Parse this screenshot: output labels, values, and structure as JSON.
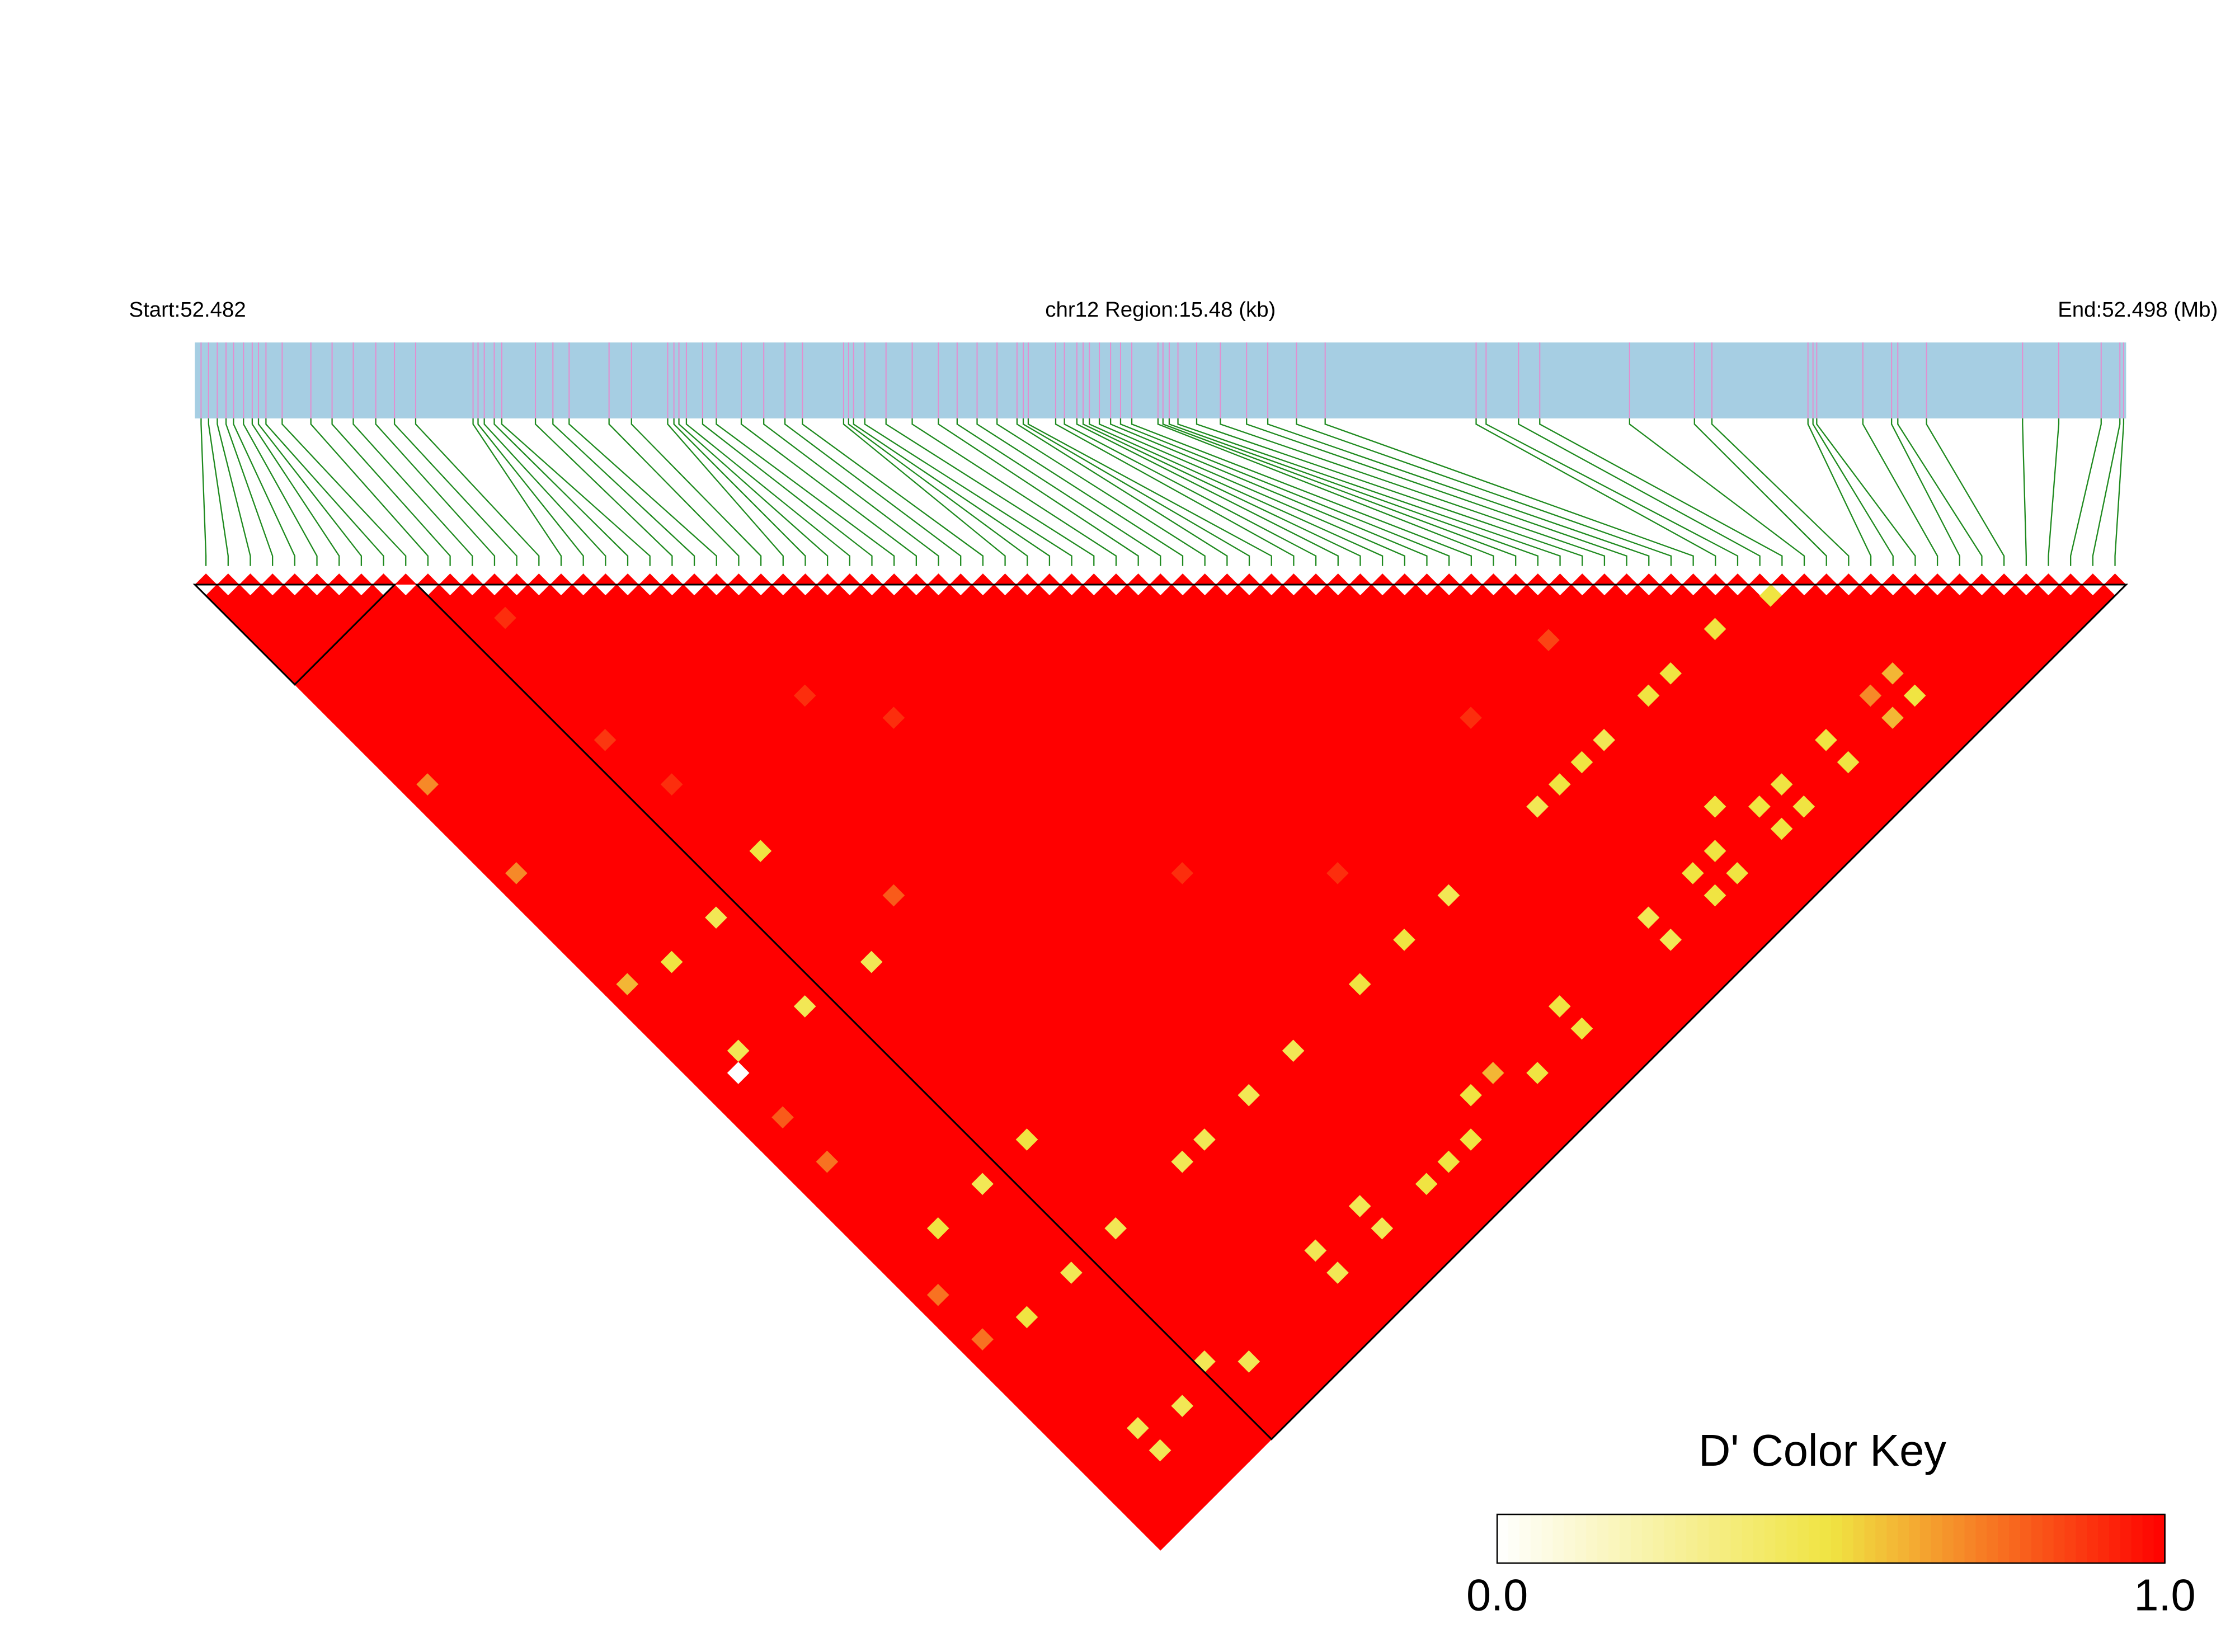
{
  "chart_data": {
    "type": "ld_heatmap",
    "start_label": "Start:52.482",
    "region_label": "chr12 Region:15.48 (kb)",
    "end_label": "End:52.498 (Mb)",
    "xlim": [
      0,
      15.48
    ],
    "snp_positions": [
      0.05,
      0.11,
      0.18,
      0.25,
      0.31,
      0.39,
      0.46,
      0.51,
      0.57,
      0.7,
      0.93,
      1.1,
      1.27,
      1.45,
      1.6,
      1.77,
      2.23,
      2.27,
      2.32,
      2.4,
      2.46,
      2.73,
      2.87,
      3.0,
      3.32,
      3.5,
      3.79,
      3.84,
      3.88,
      3.94,
      4.07,
      4.18,
      4.38,
      4.56,
      4.73,
      4.87,
      5.2,
      5.24,
      5.28,
      5.37,
      5.54,
      5.75,
      5.96,
      6.11,
      6.27,
      6.43,
      6.59,
      6.64,
      6.68,
      6.9,
      6.97,
      7.07,
      7.12,
      7.17,
      7.25,
      7.34,
      7.42,
      7.51,
      7.72,
      7.76,
      7.81,
      7.88,
      8.03,
      8.22,
      8.43,
      8.6,
      8.83,
      9.06,
      10.27,
      10.35,
      10.61,
      10.78,
      11.5,
      12.02,
      12.16,
      12.93,
      12.97,
      13.0,
      13.37,
      13.6,
      13.65,
      13.88,
      14.65,
      14.94,
      15.28,
      15.43,
      15.46
    ],
    "ld": {
      "default": 1,
      "cells": [
        [
          70,
          71,
          0.5
        ],
        [
          66,
          70,
          0.5
        ],
        [
          58,
          63,
          0.85
        ],
        [
          62,
          70,
          0.5
        ],
        [
          60,
          70,
          0.5
        ],
        [
          56,
          70,
          0.45
        ],
        [
          54,
          70,
          0.5
        ],
        [
          50,
          70,
          0.45
        ],
        [
          52,
          70,
          0.5
        ],
        [
          72,
          80,
          0.6
        ],
        [
          70,
          80,
          0.7
        ],
        [
          72,
          82,
          0.5
        ],
        [
          70,
          82,
          0.6
        ],
        [
          66,
          80,
          0.5
        ],
        [
          66,
          82,
          0.5
        ],
        [
          62,
          80,
          0.5
        ],
        [
          62,
          82,
          0.5
        ],
        [
          60,
          80,
          0.5
        ],
        [
          60,
          82,
          0.5
        ],
        [
          58,
          78,
          0.5
        ],
        [
          56,
          80,
          0.5
        ],
        [
          56,
          82,
          0.5
        ],
        [
          54,
          80,
          0.5
        ],
        [
          54,
          82,
          0.5
        ],
        [
          50,
          80,
          0.45
        ],
        [
          50,
          82,
          0.45
        ],
        [
          42,
          70,
          0.45
        ],
        [
          38,
          70,
          0.5
        ],
        [
          34,
          70,
          0.5
        ],
        [
          28,
          70,
          0.45
        ],
        [
          24,
          70,
          0.45
        ],
        [
          20,
          70,
          0.45
        ],
        [
          18,
          70,
          0.45
        ],
        [
          42,
          80,
          0.5
        ],
        [
          42,
          82,
          0.5
        ],
        [
          36,
          80,
          0.6
        ],
        [
          38,
          82,
          0.5
        ],
        [
          34,
          80,
          0.5
        ],
        [
          32,
          82,
          0.5
        ],
        [
          30,
          82,
          0.5
        ],
        [
          28,
          82,
          0.5
        ],
        [
          24,
          80,
          0.45
        ],
        [
          24,
          82,
          0.45
        ],
        [
          20,
          80,
          0.45
        ],
        [
          20,
          82,
          0.45
        ],
        [
          12,
          82,
          0.45
        ],
        [
          10,
          80,
          0.45
        ],
        [
          7,
          81,
          0.45
        ],
        [
          4,
          80,
          0.45
        ],
        [
          4,
          82,
          0.45
        ],
        [
          12,
          70,
          0.45
        ],
        [
          8,
          70,
          0.45
        ],
        [
          4,
          70,
          0.5
        ],
        [
          8,
          62,
          0.45
        ],
        [
          12,
          62,
          0.5
        ],
        [
          4,
          62,
          0.5
        ],
        [
          13,
          47,
          0.45
        ],
        [
          8,
          46,
          0.45
        ],
        [
          13,
          37,
          0.5
        ],
        [
          8,
          38,
          0.45
        ],
        [
          4,
          38,
          0.5
        ],
        [
          3,
          45,
          0.45
        ],
        [
          2,
          46,
          0
        ],
        [
          1,
          37,
          0.6
        ],
        [
          1,
          19,
          0.7
        ],
        [
          1,
          27,
          0.7
        ],
        [
          12,
          15,
          0.9
        ],
        [
          11,
          25,
          0.88
        ],
        [
          12,
          30,
          0.9
        ],
        [
          22,
          32,
          0.9
        ],
        [
          25,
          37,
          0.9
        ],
        [
          31,
          57,
          0.9
        ],
        [
          38,
          64,
          0.9
        ],
        [
          51,
          63,
          0.9
        ],
        [
          17,
          45,
          0.8
        ],
        [
          2,
          50,
          0.8
        ],
        [
          2,
          54,
          0.75
        ],
        [
          1,
          65,
          0.75
        ],
        [
          1,
          69,
          0.75
        ]
      ]
    },
    "blocks": [
      [
        0,
        8
      ],
      [
        10,
        86
      ]
    ],
    "colors": {
      "bar": "#a6cee3",
      "snp": "#e28fd0",
      "link": "#1f8a1f",
      "block": "#000000",
      "scale": [
        "#ffffff",
        "#f0e442",
        "#ff0000"
      ]
    },
    "colorbar": {
      "title": "D' Color Key",
      "lim": [
        0,
        1
      ],
      "ticks": [
        {
          "value": 0,
          "label": "0.0"
        },
        {
          "value": 1,
          "label": "1.0"
        }
      ]
    }
  }
}
